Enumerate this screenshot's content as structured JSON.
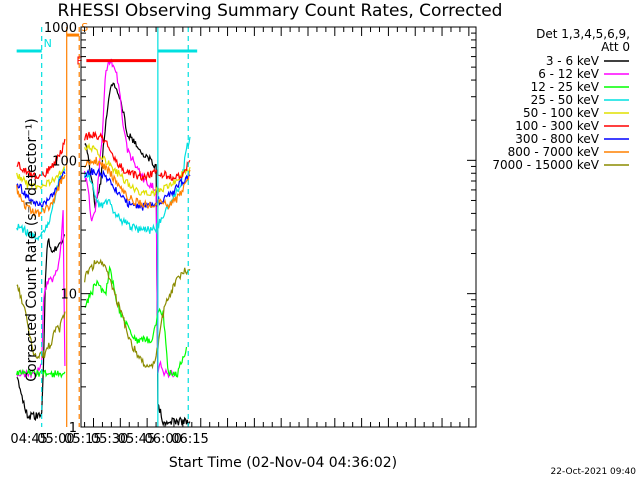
{
  "chart_data": {
    "type": "line",
    "title": "RHESSI Observing Summary Count Rates, Corrected",
    "xlabel": "Start Time (02-Nov-04 04:36:02)",
    "ylabel": "Corrected Count Rate (s⁻¹ detector⁻¹)",
    "yscale": "log",
    "ylim": [
      1,
      1000
    ],
    "xlim_minutes": [
      38,
      259
    ],
    "xlim": [
      "04:38",
      "06:19"
    ],
    "x_ticks": [
      "04:45",
      "05:00",
      "05:15",
      "05:30",
      "05:45",
      "06:00",
      "06:15"
    ],
    "y_ticks": [
      "1",
      "10",
      "100",
      "1000"
    ],
    "legend_header": [
      "Det 1,3,4,5,6,9,",
      "Att 0"
    ],
    "legend_position": "right-outside",
    "footer_date": "22-Oct-2021 09:40",
    "flags": [
      {
        "label": "N",
        "color": "#00e0e0",
        "segments": [
          [
            "04:38",
            "04:52"
          ],
          [
            "05:57",
            "06:19"
          ]
        ],
        "y": 660
      },
      {
        "label": "S",
        "color": "#ff8000",
        "segments": [
          [
            "05:06",
            "05:13"
          ]
        ],
        "y": 870
      },
      {
        "label": "F",
        "color": "#ff0000",
        "segments": [
          [
            "05:17",
            "05:56"
          ]
        ],
        "y": 560
      }
    ],
    "vlines": [
      {
        "t": "04:52",
        "color": "#00e0e0",
        "style": "dashed"
      },
      {
        "t": "05:06",
        "color": "#ff8000",
        "style": "solid"
      },
      {
        "t": "05:13",
        "color": "#ff8000",
        "style": "dashed"
      },
      {
        "t": "05:57",
        "color": "#00e0e0",
        "style": "solid"
      },
      {
        "t": "06:14",
        "color": "#00e0e0",
        "style": "dashed"
      }
    ],
    "gap": [
      "05:06",
      "05:16"
    ],
    "series": [
      {
        "name": "3 - 6 keV",
        "color": "#000000",
        "x": [
          "04:38",
          "04:44",
          "04:49",
          "04:52",
          "04:53",
          "04:54",
          "04:55",
          "04:56",
          "04:57",
          "04:58",
          "05:00",
          "05:02",
          "05:05",
          "05:16",
          "05:18",
          "05:20",
          "05:22",
          "05:25",
          "05:27",
          "05:30",
          "05:32",
          "05:34",
          "05:36",
          "05:38",
          "05:40",
          "05:43",
          "05:47",
          "05:50",
          "05:53",
          "05:56",
          "05:57",
          "06:00",
          "06:03",
          "06:06",
          "06:09",
          "06:12",
          "06:15"
        ],
        "y": [
          2.5,
          1.2,
          1.2,
          1.2,
          3,
          12,
          22,
          25,
          22,
          20,
          22,
          24,
          28,
          130,
          110,
          70,
          45,
          70,
          150,
          320,
          380,
          350,
          300,
          220,
          160,
          140,
          120,
          110,
          100,
          90,
          1.5,
          1.1,
          1.1,
          1.1,
          1.1,
          1.1,
          1.1
        ]
      },
      {
        "name": "6 - 12 keV",
        "color": "#ff00ff",
        "x": [
          "04:38",
          "04:44",
          "04:49",
          "04:52",
          "04:53",
          "04:55",
          "04:58",
          "05:00",
          "05:02",
          "05:04",
          "05:05",
          "05:16",
          "05:18",
          "05:20",
          "05:22",
          "05:24",
          "05:26",
          "05:27",
          "05:28",
          "05:30",
          "05:32",
          "05:34",
          "05:36",
          "05:38",
          "05:40",
          "05:43",
          "05:47",
          "05:50",
          "05:53",
          "05:56",
          "05:57",
          "05:58",
          "06:00",
          "06:03",
          "06:06"
        ],
        "y": [
          2.5,
          2.5,
          2.5,
          3,
          9,
          12,
          13,
          14,
          18,
          40,
          3,
          80,
          60,
          35,
          40,
          80,
          150,
          300,
          480,
          560,
          530,
          450,
          300,
          160,
          120,
          100,
          80,
          70,
          65,
          60,
          2.5,
          3,
          2.5,
          2.5,
          2.5
        ]
      },
      {
        "name": "12 - 25 keV",
        "color": "#00ff00",
        "x": [
          "04:38",
          "04:44",
          "04:49",
          "04:52",
          "04:55",
          "04:58",
          "05:00",
          "05:03",
          "05:05",
          "05:16",
          "05:18",
          "05:20",
          "05:22",
          "05:25",
          "05:28",
          "05:30",
          "05:33",
          "05:36",
          "05:39",
          "05:42",
          "05:45",
          "05:48",
          "05:51",
          "05:54",
          "05:57",
          "05:58",
          "06:00",
          "06:03",
          "06:06",
          "06:08",
          "06:10",
          "06:13"
        ],
        "y": [
          2.5,
          2.5,
          2.5,
          2.5,
          2.5,
          2.5,
          2.5,
          2.5,
          2.5,
          8,
          9,
          10,
          12,
          11,
          10,
          16,
          10,
          7,
          6,
          5,
          4.5,
          4.5,
          4.5,
          4.5,
          7,
          8,
          7,
          2.5,
          2.5,
          2.5,
          3,
          4
        ]
      },
      {
        "name": "25 - 50 keV",
        "color": "#00e0e0",
        "x": [
          "04:38",
          "04:42",
          "04:46",
          "04:50",
          "04:53",
          "04:56",
          "04:58",
          "05:00",
          "05:02",
          "05:04",
          "05:05",
          "05:16",
          "05:18",
          "05:20",
          "05:22",
          "05:24",
          "05:26",
          "05:28",
          "05:30",
          "05:33",
          "05:36",
          "05:40",
          "05:44",
          "05:48",
          "05:52",
          "05:56",
          "05:58",
          "06:00",
          "06:03",
          "06:06",
          "06:09",
          "06:11",
          "06:13",
          "06:15"
        ],
        "y": [
          32,
          30,
          28,
          27,
          30,
          35,
          42,
          60,
          70,
          80,
          85,
          75,
          80,
          70,
          55,
          45,
          45,
          50,
          48,
          40,
          36,
          33,
          31,
          30,
          30,
          31,
          35,
          38,
          45,
          55,
          60,
          80,
          120,
          150
        ]
      },
      {
        "name": "50 - 100 keV",
        "color": "#e0e000",
        "x": [
          "04:38",
          "04:41",
          "04:44",
          "04:47",
          "04:50",
          "04:53",
          "04:56",
          "04:59",
          "05:02",
          "05:05",
          "05:16",
          "05:19",
          "05:22",
          "05:25",
          "05:28",
          "05:31",
          "05:34",
          "05:37",
          "05:40",
          "05:43",
          "05:46",
          "05:49",
          "05:52",
          "05:55",
          "05:58",
          "06:01",
          "06:04",
          "06:07",
          "06:10",
          "06:13",
          "06:15"
        ],
        "y": [
          80,
          72,
          66,
          64,
          65,
          65,
          68,
          70,
          78,
          88,
          120,
          125,
          120,
          110,
          100,
          90,
          82,
          75,
          68,
          62,
          58,
          57,
          57,
          57,
          60,
          62,
          65,
          70,
          78,
          85,
          88
        ]
      },
      {
        "name": "100 - 300 keV",
        "color": "#ff0000",
        "x": [
          "04:38",
          "04:41",
          "04:44",
          "04:47",
          "04:50",
          "04:53",
          "04:56",
          "04:59",
          "05:02",
          "05:05",
          "05:16",
          "05:19",
          "05:22",
          "05:25",
          "05:28",
          "05:31",
          "05:34",
          "05:37",
          "05:40",
          "05:43",
          "05:46",
          "05:49",
          "05:52",
          "05:55",
          "05:58",
          "06:01",
          "06:04",
          "06:07",
          "06:10",
          "06:13",
          "06:15"
        ],
        "y": [
          95,
          88,
          80,
          76,
          75,
          78,
          85,
          95,
          110,
          135,
          150,
          155,
          155,
          150,
          135,
          115,
          98,
          88,
          82,
          78,
          76,
          76,
          78,
          80,
          80,
          78,
          75,
          73,
          78,
          88,
          95
        ]
      },
      {
        "name": "300 - 800 keV",
        "color": "#0000ff",
        "x": [
          "04:38",
          "04:41",
          "04:44",
          "04:47",
          "04:50",
          "04:53",
          "04:56",
          "04:59",
          "05:02",
          "05:05",
          "05:16",
          "05:19",
          "05:22",
          "05:25",
          "05:28",
          "05:31",
          "05:34",
          "05:37",
          "05:40",
          "05:43",
          "05:46",
          "05:49",
          "05:52",
          "05:55",
          "05:58",
          "06:01",
          "06:04",
          "06:07",
          "06:10",
          "06:13",
          "06:15"
        ],
        "y": [
          70,
          60,
          52,
          48,
          46,
          46,
          50,
          58,
          68,
          82,
          78,
          82,
          82,
          80,
          74,
          66,
          58,
          52,
          48,
          46,
          45,
          45,
          46,
          48,
          50,
          52,
          55,
          60,
          68,
          74,
          76
        ]
      },
      {
        "name": "800 - 7000 keV",
        "color": "#ff8000",
        "x": [
          "04:38",
          "04:41",
          "04:44",
          "04:47",
          "04:50",
          "04:53",
          "04:56",
          "04:59",
          "05:02",
          "05:05",
          "05:16",
          "05:19",
          "05:22",
          "05:25",
          "05:28",
          "05:31",
          "05:34",
          "05:37",
          "05:40",
          "05:43",
          "05:46",
          "05:49",
          "05:52",
          "05:55",
          "05:58",
          "06:01",
          "06:04",
          "06:07",
          "06:10",
          "06:13",
          "06:15"
        ],
        "y": [
          62,
          50,
          44,
          41,
          40,
          41,
          44,
          52,
          65,
          80,
          90,
          98,
          100,
          96,
          88,
          78,
          68,
          60,
          54,
          50,
          48,
          47,
          47,
          48,
          48,
          47,
          46,
          50,
          58,
          70,
          80
        ]
      },
      {
        "name": "7000 - 15000 keV",
        "color": "#8b8b00",
        "x": [
          "04:38",
          "04:40",
          "04:42",
          "04:44",
          "04:46",
          "04:48",
          "04:50",
          "04:52",
          "04:54",
          "04:56",
          "04:58",
          "05:00",
          "05:02",
          "05:04",
          "05:05",
          "05:16",
          "05:19",
          "05:22",
          "05:25",
          "05:28",
          "05:31",
          "05:34",
          "05:37",
          "05:40",
          "05:43",
          "05:46",
          "05:49",
          "05:52",
          "05:55",
          "05:57",
          "05:59",
          "06:01",
          "06:04",
          "06:07",
          "06:10",
          "06:13",
          "06:15"
        ],
        "y": [
          12,
          10,
          8,
          6,
          4.5,
          3.5,
          3.5,
          3.5,
          3.5,
          4,
          4.5,
          5.5,
          5.5,
          6.5,
          7,
          13,
          15,
          17,
          17,
          15,
          12,
          9,
          7,
          5,
          4,
          3.5,
          3,
          3,
          3,
          4,
          6,
          8,
          10,
          12,
          14,
          15,
          15
        ]
      }
    ]
  }
}
